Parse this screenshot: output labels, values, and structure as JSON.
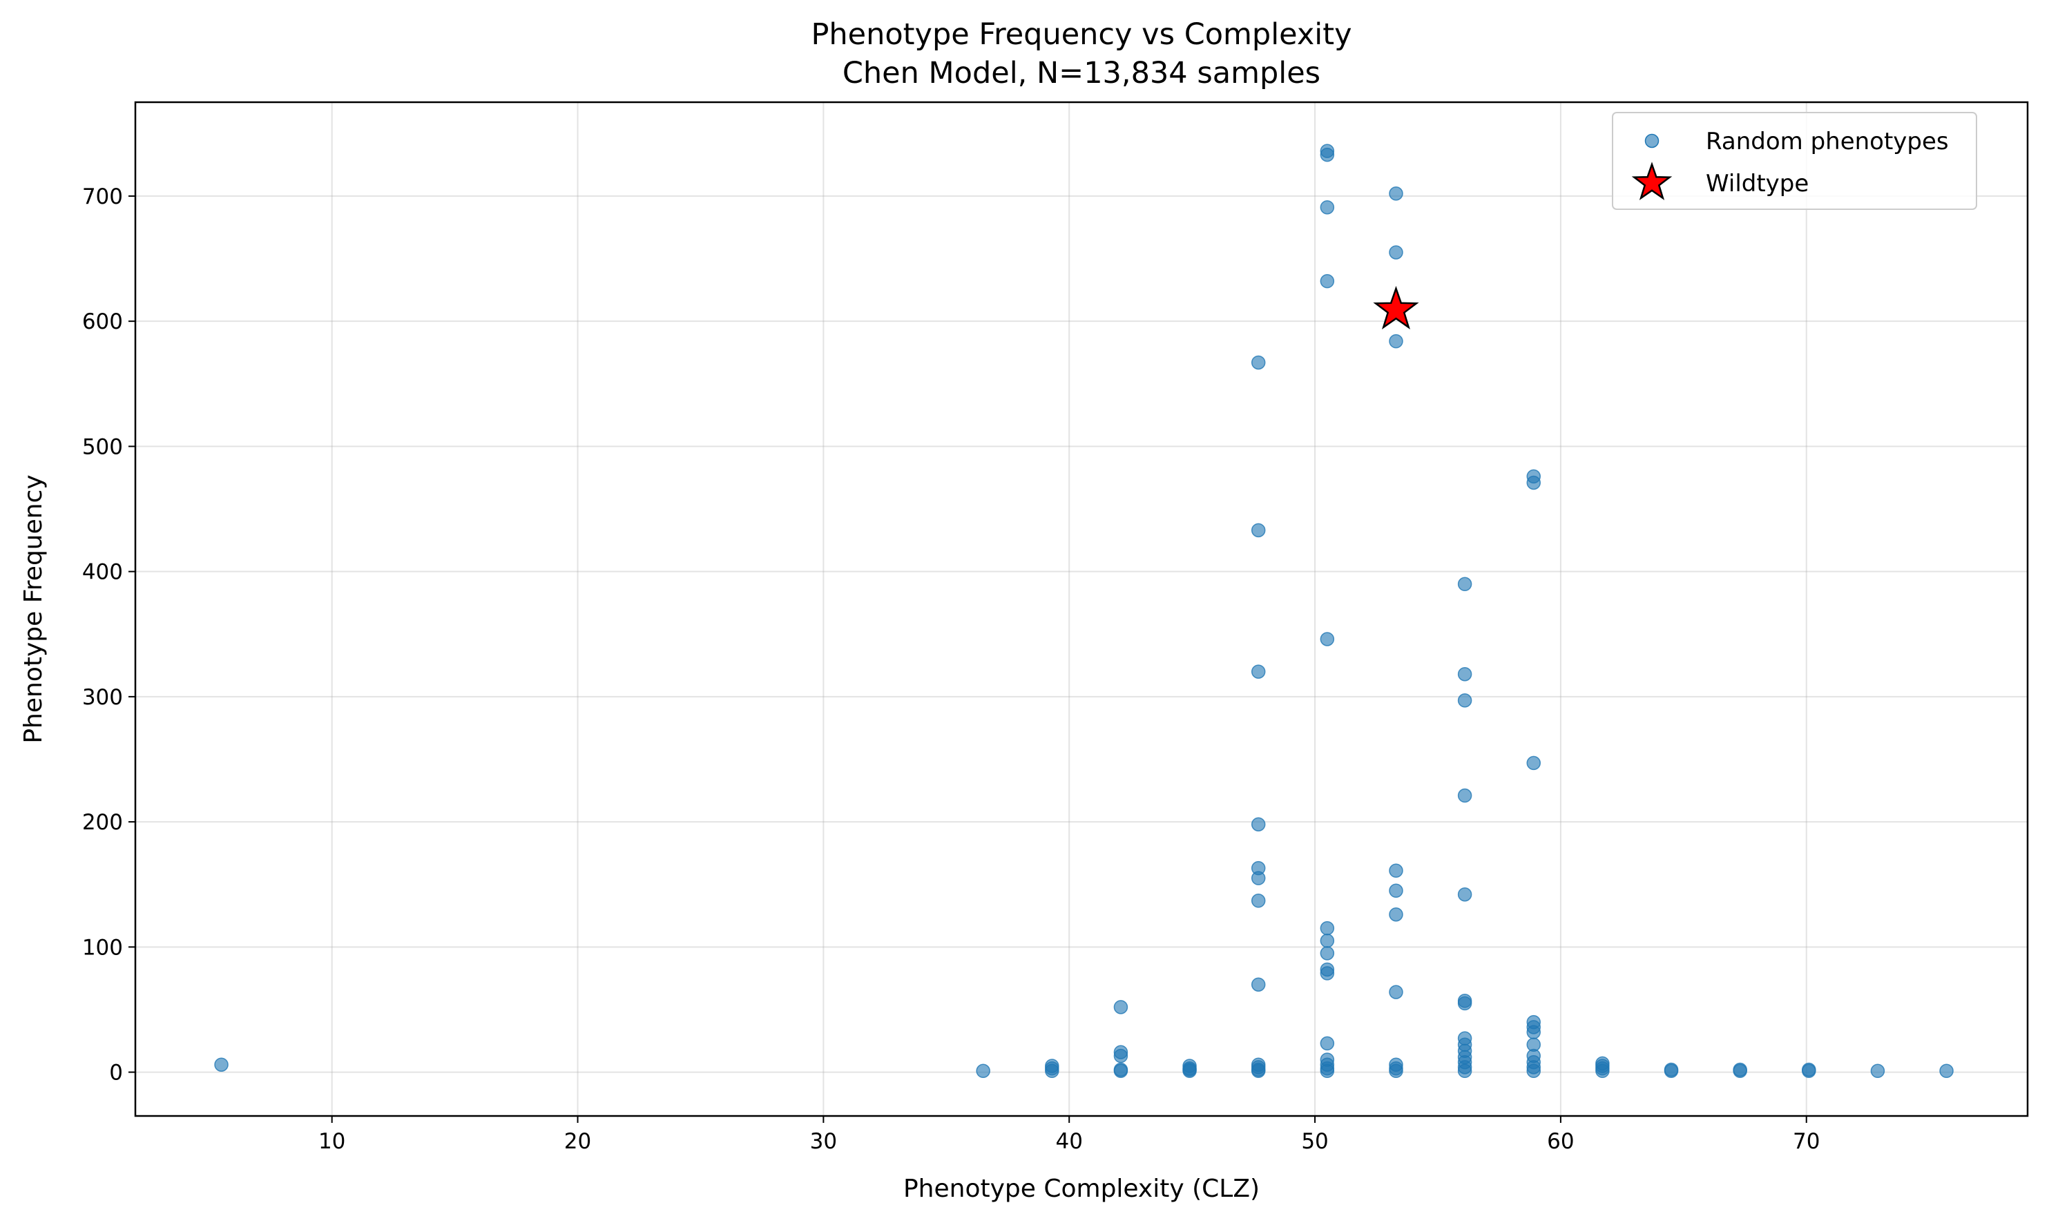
{
  "chart_data": {
    "type": "scatter",
    "title": "Phenotype Frequency vs Complexity",
    "subtitle": "Chen Model, N=13,834 samples",
    "xlabel": "Phenotype Complexity (CLZ)",
    "ylabel": "Phenotype Frequency",
    "xlim": [
      2,
      79
    ],
    "ylim": [
      -35,
      775
    ],
    "xticks": [
      10,
      20,
      30,
      40,
      50,
      60,
      70
    ],
    "yticks": [
      0,
      100,
      200,
      300,
      400,
      500,
      600,
      700
    ],
    "grid": true,
    "legend_position": "top-right",
    "series": [
      {
        "name": "Random phenotypes",
        "color": "#1f77b4",
        "marker": "circle",
        "points": [
          [
            5.5,
            6
          ],
          [
            36.5,
            1
          ],
          [
            39.3,
            1
          ],
          [
            39.3,
            3
          ],
          [
            39.3,
            5
          ],
          [
            42.1,
            1
          ],
          [
            42.1,
            2
          ],
          [
            42.1,
            13
          ],
          [
            42.1,
            16
          ],
          [
            42.1,
            52
          ],
          [
            44.9,
            1
          ],
          [
            44.9,
            2
          ],
          [
            44.9,
            3
          ],
          [
            44.9,
            5
          ],
          [
            47.7,
            1
          ],
          [
            47.7,
            2
          ],
          [
            47.7,
            4
          ],
          [
            47.7,
            6
          ],
          [
            47.7,
            70
          ],
          [
            47.7,
            137
          ],
          [
            47.7,
            155
          ],
          [
            47.7,
            163
          ],
          [
            47.7,
            198
          ],
          [
            47.7,
            320
          ],
          [
            47.7,
            433
          ],
          [
            47.7,
            567
          ],
          [
            50.5,
            1
          ],
          [
            50.5,
            3
          ],
          [
            50.5,
            6
          ],
          [
            50.5,
            10
          ],
          [
            50.5,
            23
          ],
          [
            50.5,
            79
          ],
          [
            50.5,
            82
          ],
          [
            50.5,
            95
          ],
          [
            50.5,
            105
          ],
          [
            50.5,
            115
          ],
          [
            50.5,
            346
          ],
          [
            50.5,
            632
          ],
          [
            50.5,
            691
          ],
          [
            50.5,
            733
          ],
          [
            50.5,
            736
          ],
          [
            53.3,
            1
          ],
          [
            53.3,
            3
          ],
          [
            53.3,
            6
          ],
          [
            53.3,
            64
          ],
          [
            53.3,
            126
          ],
          [
            53.3,
            145
          ],
          [
            53.3,
            161
          ],
          [
            53.3,
            584
          ],
          [
            53.3,
            655
          ],
          [
            53.3,
            702
          ],
          [
            56.1,
            1
          ],
          [
            56.1,
            4
          ],
          [
            56.1,
            8
          ],
          [
            56.1,
            12
          ],
          [
            56.1,
            17
          ],
          [
            56.1,
            22
          ],
          [
            56.1,
            27
          ],
          [
            56.1,
            55
          ],
          [
            56.1,
            57
          ],
          [
            56.1,
            142
          ],
          [
            56.1,
            221
          ],
          [
            56.1,
            297
          ],
          [
            56.1,
            318
          ],
          [
            56.1,
            390
          ],
          [
            58.9,
            1
          ],
          [
            58.9,
            4
          ],
          [
            58.9,
            8
          ],
          [
            58.9,
            13
          ],
          [
            58.9,
            22
          ],
          [
            58.9,
            32
          ],
          [
            58.9,
            36
          ],
          [
            58.9,
            40
          ],
          [
            58.9,
            247
          ],
          [
            58.9,
            471
          ],
          [
            58.9,
            476
          ],
          [
            61.7,
            1
          ],
          [
            61.7,
            3
          ],
          [
            61.7,
            5
          ],
          [
            61.7,
            7
          ],
          [
            64.5,
            1
          ],
          [
            64.5,
            2
          ],
          [
            67.3,
            1
          ],
          [
            67.3,
            2
          ],
          [
            70.1,
            1
          ],
          [
            70.1,
            2
          ],
          [
            72.9,
            1
          ],
          [
            75.7,
            1
          ]
        ]
      },
      {
        "name": "Wildtype",
        "color": "#ff0000",
        "marker": "star",
        "points": [
          [
            53.3,
            609
          ]
        ]
      }
    ]
  }
}
